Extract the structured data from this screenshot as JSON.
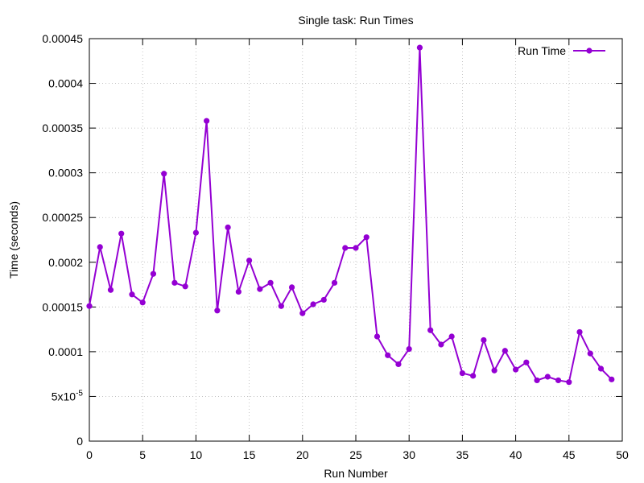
{
  "chart_data": {
    "type": "line",
    "title": "Single task: Run Times",
    "xlabel": "Run Number",
    "ylabel": "Time (seconds)",
    "xlim": [
      0,
      50
    ],
    "ylim": [
      0,
      0.00045
    ],
    "x_ticks": [
      0,
      5,
      10,
      15,
      20,
      25,
      30,
      35,
      40,
      45,
      50
    ],
    "x_tick_labels": [
      "0",
      "5",
      "10",
      "15",
      "20",
      "25",
      "30",
      "35",
      "40",
      "45",
      "50"
    ],
    "y_ticks": [
      0,
      5e-05,
      0.0001,
      0.00015,
      0.0002,
      0.00025,
      0.0003,
      0.00035,
      0.0004,
      0.00045
    ],
    "y_tick_labels": [
      "0",
      "5x10-5",
      "0.0001",
      "0.00015",
      "0.0002",
      "0.00025",
      "0.0003",
      "0.00035",
      "0.0004",
      "0.00045"
    ],
    "grid": true,
    "legend_position": "top-right",
    "series": [
      {
        "name": "Run Time",
        "color": "#9400d3",
        "x": [
          0,
          1,
          2,
          3,
          4,
          5,
          6,
          7,
          8,
          9,
          10,
          11,
          12,
          13,
          14,
          15,
          16,
          17,
          18,
          19,
          20,
          21,
          22,
          23,
          24,
          25,
          26,
          27,
          28,
          29,
          30,
          31,
          32,
          33,
          34,
          35,
          36,
          37,
          38,
          39,
          40,
          41,
          42,
          43,
          44,
          45,
          46,
          47,
          48,
          49
        ],
        "y": [
          0.000151,
          0.000217,
          0.000169,
          0.000232,
          0.000164,
          0.000155,
          0.000187,
          0.000299,
          0.000177,
          0.000173,
          0.000233,
          0.000358,
          0.000146,
          0.000239,
          0.000167,
          0.000202,
          0.00017,
          0.000177,
          0.000151,
          0.000172,
          0.000143,
          0.000153,
          0.000158,
          0.000177,
          0.000216,
          0.000216,
          0.000228,
          0.000117,
          9.6e-05,
          8.6e-05,
          0.000103,
          0.00044,
          0.000124,
          0.000108,
          0.000117,
          7.6e-05,
          7.3e-05,
          0.000113,
          7.9e-05,
          0.000101,
          8e-05,
          8.8e-05,
          6.8e-05,
          7.2e-05,
          6.8e-05,
          6.6e-05,
          0.000122,
          9.8e-05,
          8.1e-05,
          6.9e-05
        ]
      }
    ]
  }
}
